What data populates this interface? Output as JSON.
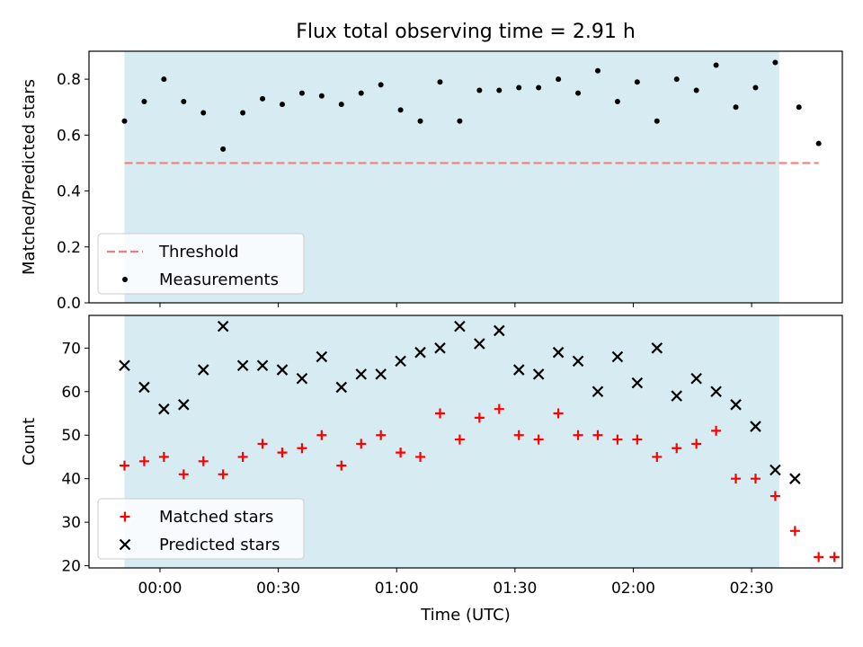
{
  "title": "Flux total observing time = 2.91 h",
  "colors": {
    "shade": "#add8e6",
    "threshold": "#f08080",
    "measurement": "#000000",
    "matched": "#ff0000",
    "predicted": "#000000"
  },
  "chart_data": [
    {
      "type": "scatter",
      "panel": "top",
      "xlabel": "",
      "ylabel": "Matched/Predicted stars",
      "xlim": [
        "23:42",
        "02:53"
      ],
      "ylim": [
        0,
        0.9
      ],
      "yticks": [
        0.0,
        0.2,
        0.4,
        0.6,
        0.8
      ],
      "grid": false,
      "legend_position": "lower-left",
      "shaded_span": [
        "23:51",
        "02:37"
      ],
      "series": [
        {
          "name": "Threshold",
          "style": "dashed-line",
          "x": [
            "23:51",
            "02:47"
          ],
          "y": [
            0.5,
            0.5
          ]
        },
        {
          "name": "Measurements",
          "style": "dot",
          "x": [
            "23:51",
            "23:56",
            "00:01",
            "00:06",
            "00:11",
            "00:16",
            "00:21",
            "00:26",
            "00:31",
            "00:36",
            "00:41",
            "00:46",
            "00:51",
            "00:56",
            "01:01",
            "01:06",
            "01:11",
            "01:16",
            "01:21",
            "01:26",
            "01:31",
            "01:36",
            "01:41",
            "01:46",
            "01:51",
            "01:56",
            "02:01",
            "02:06",
            "02:11",
            "02:16",
            "02:21",
            "02:26",
            "02:31",
            "02:36",
            "02:42",
            "02:47"
          ],
          "y": [
            0.65,
            0.72,
            0.8,
            0.72,
            0.68,
            0.55,
            0.68,
            0.73,
            0.71,
            0.75,
            0.74,
            0.71,
            0.75,
            0.78,
            0.69,
            0.65,
            0.79,
            0.65,
            0.76,
            0.76,
            0.77,
            0.77,
            0.8,
            0.75,
            0.83,
            0.72,
            0.79,
            0.65,
            0.8,
            0.76,
            0.85,
            0.7,
            0.77,
            0.86,
            0.7,
            0.57
          ]
        }
      ]
    },
    {
      "type": "scatter",
      "panel": "bottom",
      "xlabel": "Time (UTC)",
      "ylabel": "Count",
      "xlim": [
        "23:42",
        "02:53"
      ],
      "xticks": [
        "00:00",
        "00:30",
        "01:00",
        "01:30",
        "02:00",
        "02:30"
      ],
      "ylim": [
        19.5,
        77.5
      ],
      "yticks": [
        20,
        30,
        40,
        50,
        60,
        70
      ],
      "grid": false,
      "legend_position": "lower-left",
      "shaded_span": [
        "23:51",
        "02:37"
      ],
      "series": [
        {
          "name": "Matched stars",
          "marker": "plus",
          "x": [
            "23:51",
            "23:56",
            "00:01",
            "00:06",
            "00:11",
            "00:16",
            "00:21",
            "00:26",
            "00:31",
            "00:36",
            "00:41",
            "00:46",
            "00:51",
            "00:56",
            "01:01",
            "01:06",
            "01:11",
            "01:16",
            "01:21",
            "01:26",
            "01:31",
            "01:36",
            "01:41",
            "01:46",
            "01:51",
            "01:56",
            "02:01",
            "02:06",
            "02:11",
            "02:16",
            "02:21",
            "02:26",
            "02:31",
            "02:36",
            "02:41",
            "02:47",
            "02:51"
          ],
          "y": [
            43,
            44,
            45,
            41,
            44,
            41,
            45,
            48,
            46,
            47,
            50,
            43,
            48,
            50,
            46,
            45,
            55,
            49,
            54,
            56,
            50,
            49,
            55,
            50,
            50,
            49,
            49,
            45,
            47,
            48,
            51,
            40,
            40,
            36,
            28,
            22,
            22
          ]
        },
        {
          "name": "Predicted stars",
          "marker": "x",
          "x": [
            "23:51",
            "23:56",
            "00:01",
            "00:06",
            "00:11",
            "00:16",
            "00:21",
            "00:26",
            "00:31",
            "00:36",
            "00:41",
            "00:46",
            "00:51",
            "00:56",
            "01:01",
            "01:06",
            "01:11",
            "01:16",
            "01:21",
            "01:26",
            "01:31",
            "01:36",
            "01:41",
            "01:46",
            "01:51",
            "01:56",
            "02:01",
            "02:06",
            "02:11",
            "02:16",
            "02:21",
            "02:26",
            "02:31",
            "02:36",
            "02:41"
          ],
          "y": [
            66,
            61,
            56,
            57,
            65,
            75,
            66,
            66,
            65,
            63,
            68,
            61,
            64,
            64,
            67,
            69,
            70,
            75,
            71,
            74,
            65,
            64,
            69,
            67,
            60,
            68,
            62,
            70,
            59,
            63,
            60,
            57,
            52,
            42,
            40
          ]
        }
      ]
    }
  ]
}
